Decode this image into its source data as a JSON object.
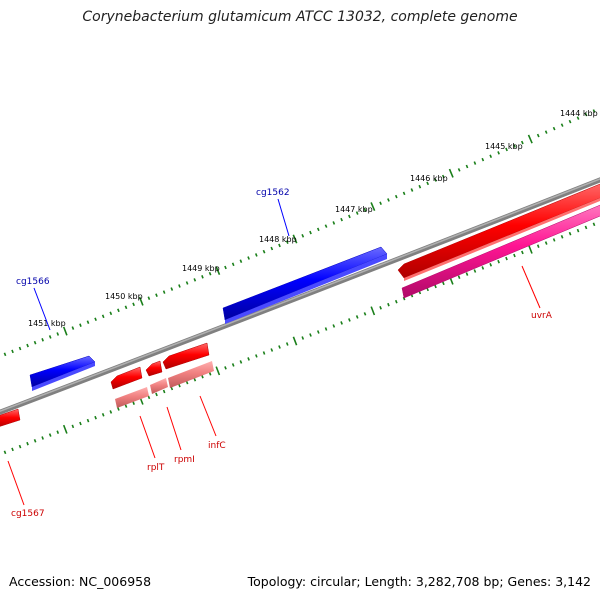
{
  "title": "Corynebacterium glutamicum ATCC 13032, complete genome",
  "footer": {
    "accession": "Accession: NC_006958",
    "summary": "Topology: circular; Length: 3,282,708 bp; Genes: 3,142"
  },
  "scale_labels": [
    "1444 kbp",
    "1445 kbp",
    "1446 kbp",
    "1447 kbp",
    "1448 kbp",
    "1449 kbp",
    "1450 kbp",
    "1451 kbp"
  ],
  "genes": [
    {
      "label": "cg1562",
      "strand": "forward"
    },
    {
      "label": "cg1566",
      "strand": "forward"
    },
    {
      "label": "uvrA",
      "strand": "reverse"
    },
    {
      "label": "rplT",
      "strand": "reverse"
    },
    {
      "label": "rpmI",
      "strand": "reverse"
    },
    {
      "label": "infC",
      "strand": "reverse"
    },
    {
      "label": "cg1567",
      "strand": "reverse"
    }
  ],
  "colors": {
    "forward_cds": "#0000ff",
    "reverse_cds": "#ff0000",
    "reverse_feature": "#ff1493",
    "reverse_feature_light": "#f08080",
    "backbone": "#808080",
    "forward_label": "#0000aa",
    "reverse_label": "#cc0000",
    "tick": "#1a7f1a"
  }
}
